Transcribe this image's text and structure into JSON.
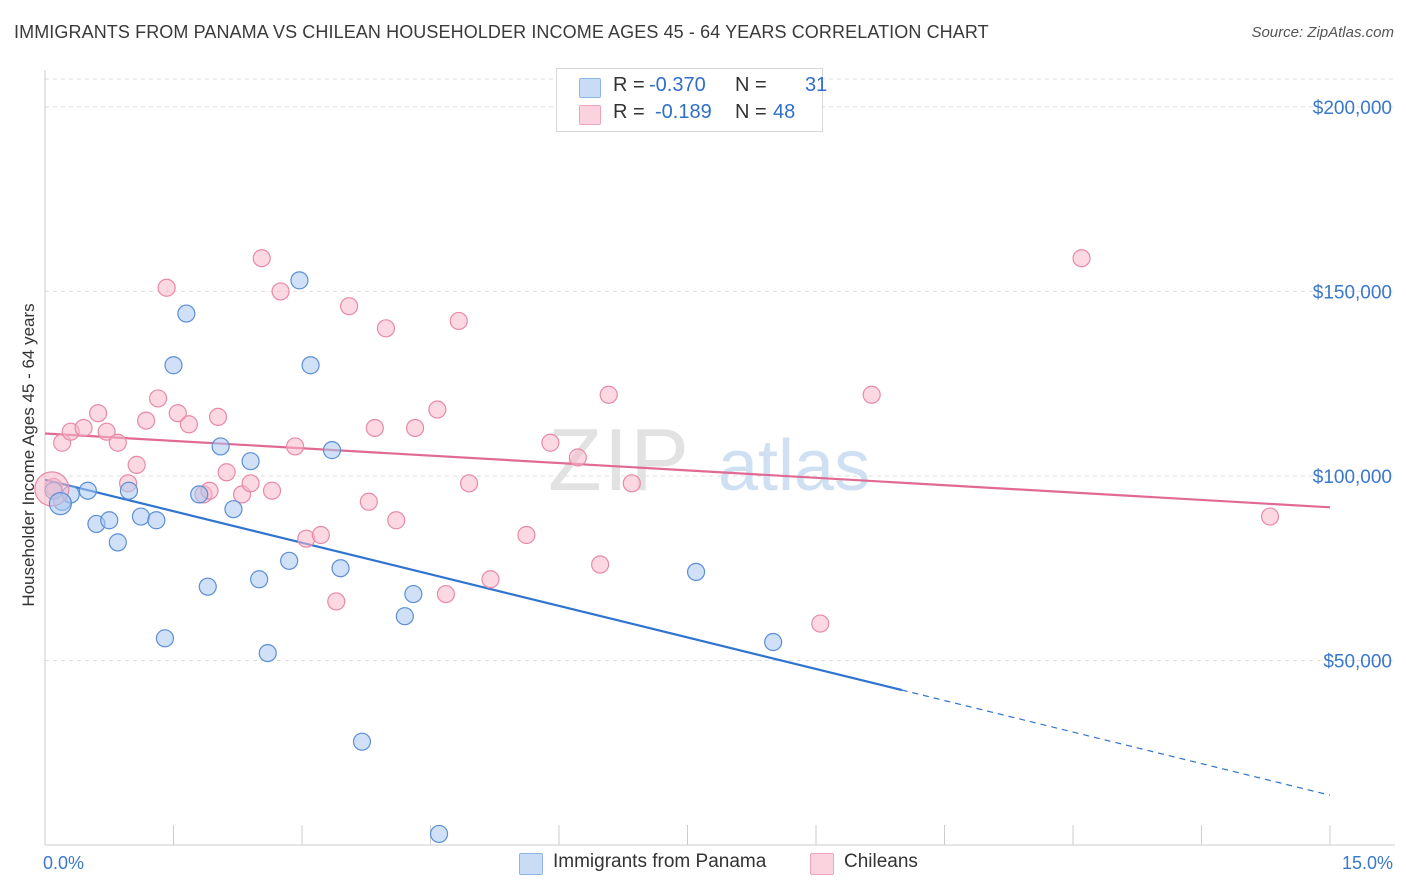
{
  "title": "IMMIGRANTS FROM PANAMA VS CHILEAN HOUSEHOLDER INCOME AGES 45 - 64 YEARS CORRELATION CHART",
  "source": "Source: ZipAtlas.com",
  "watermark": {
    "zip": "ZIP",
    "atlas": "atlas"
  },
  "legend": {
    "rows": [
      {
        "r_label": "R =",
        "r_value": "-0.370",
        "n_label": "N =",
        "n_value": "31",
        "color": "#a9c8f0"
      },
      {
        "r_label": "R =",
        "r_value": "-0.189",
        "n_label": "N =",
        "n_value": "48",
        "color": "#f7b8cb"
      }
    ]
  },
  "chart_data": {
    "type": "scatter",
    "title": "IMMIGRANTS FROM PANAMA VS CHILEAN HOUSEHOLDER INCOME AGES 45 - 64 YEARS CORRELATION CHART",
    "xlabel": "",
    "ylabel": "Householder Income Ages 45 - 64 years",
    "xlim": [
      0,
      15
    ],
    "ylim": [
      0,
      210000
    ],
    "x_tick_labels": [
      "0.0%",
      "15.0%"
    ],
    "y_ticks": [
      50000,
      100000,
      150000,
      200000
    ],
    "y_tick_labels": [
      "$50,000",
      "$100,000",
      "$150,000",
      "$200,000"
    ],
    "grid": "horizontal dashed",
    "legend_placement": "top-center",
    "series": [
      {
        "name": "Immigrants from Panama",
        "color": "#a9c8f0",
        "stroke": "#5b8fd6",
        "line_color": "#2f74d0",
        "trend": {
          "x0": 0.0,
          "y0": 99000,
          "x1": 10.0,
          "y1": 42000,
          "dashed_to_x": 15.0,
          "dashed_to_y": 13500
        },
        "points": [
          [
            0.2,
            93000
          ],
          [
            0.5,
            96000
          ],
          [
            0.6,
            87000
          ],
          [
            0.75,
            88000
          ],
          [
            0.85,
            82000
          ],
          [
            0.98,
            96000
          ],
          [
            1.12,
            89000
          ],
          [
            1.3,
            88000
          ],
          [
            1.4,
            56000
          ],
          [
            1.5,
            130000
          ],
          [
            1.65,
            144000
          ],
          [
            1.8,
            95000
          ],
          [
            1.9,
            70000
          ],
          [
            2.05,
            108000
          ],
          [
            2.2,
            91000
          ],
          [
            2.4,
            104000
          ],
          [
            2.5,
            72000
          ],
          [
            2.6,
            52000
          ],
          [
            2.85,
            77000
          ],
          [
            2.97,
            153000
          ],
          [
            3.1,
            130000
          ],
          [
            3.35,
            107000
          ],
          [
            3.45,
            75000
          ],
          [
            3.7,
            28000
          ],
          [
            4.2,
            62000
          ],
          [
            4.3,
            68000
          ],
          [
            4.6,
            3000
          ],
          [
            7.6,
            74000
          ],
          [
            8.5,
            55000
          ],
          [
            0.1,
            96000
          ],
          [
            0.3,
            95000
          ]
        ]
      },
      {
        "name": "Chileans",
        "color": "#f7b8cb",
        "stroke": "#e88aa7",
        "line_color": "#e06a93",
        "trend": {
          "x0": 0.0,
          "y0": 111500,
          "x1": 15.0,
          "y1": 91500
        },
        "points": [
          [
            0.1,
            97000
          ],
          [
            0.2,
            109000
          ],
          [
            0.3,
            112000
          ],
          [
            0.45,
            113000
          ],
          [
            0.62,
            117000
          ],
          [
            0.72,
            112000
          ],
          [
            0.85,
            109000
          ],
          [
            0.97,
            98000
          ],
          [
            1.07,
            103000
          ],
          [
            1.18,
            115000
          ],
          [
            1.32,
            121000
          ],
          [
            1.42,
            151000
          ],
          [
            1.55,
            117000
          ],
          [
            1.68,
            114000
          ],
          [
            1.85,
            95000
          ],
          [
            1.92,
            96000
          ],
          [
            2.02,
            116000
          ],
          [
            2.12,
            101000
          ],
          [
            2.3,
            95000
          ],
          [
            2.4,
            98000
          ],
          [
            2.53,
            159000
          ],
          [
            2.65,
            96000
          ],
          [
            2.75,
            150000
          ],
          [
            2.92,
            108000
          ],
          [
            3.05,
            83000
          ],
          [
            3.22,
            84000
          ],
          [
            3.4,
            66000
          ],
          [
            3.55,
            146000
          ],
          [
            3.78,
            93000
          ],
          [
            3.85,
            113000
          ],
          [
            3.98,
            140000
          ],
          [
            4.1,
            88000
          ],
          [
            4.32,
            113000
          ],
          [
            4.58,
            118000
          ],
          [
            4.68,
            68000
          ],
          [
            4.83,
            142000
          ],
          [
            4.95,
            98000
          ],
          [
            5.2,
            72000
          ],
          [
            5.62,
            84000
          ],
          [
            5.9,
            109000
          ],
          [
            6.22,
            105000
          ],
          [
            6.48,
            76000
          ],
          [
            6.58,
            122000
          ],
          [
            6.85,
            98000
          ],
          [
            9.05,
            60000
          ],
          [
            9.65,
            122000
          ],
          [
            12.1,
            159000
          ],
          [
            14.3,
            89000
          ]
        ]
      }
    ]
  }
}
